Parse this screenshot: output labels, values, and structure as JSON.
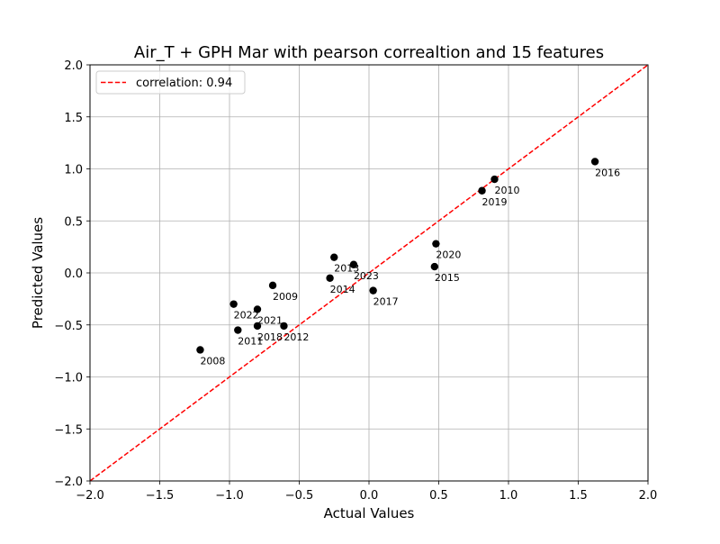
{
  "chart_data": {
    "type": "scatter",
    "title": "Air_T + GPH Mar with pearson correaltion and 15 features",
    "xlabel": "Actual Values",
    "ylabel": "Predicted Values",
    "xlim": [
      -2.0,
      2.0
    ],
    "ylim": [
      -2.0,
      2.0
    ],
    "xticks": [
      "−2.0",
      "−1.5",
      "−1.0",
      "−0.5",
      "0.0",
      "0.5",
      "1.0",
      "1.5",
      "2.0"
    ],
    "yticks": [
      "−2.0",
      "−1.5",
      "−1.0",
      "−0.5",
      "0.0",
      "0.5",
      "1.0",
      "1.5",
      "2.0"
    ],
    "grid": true,
    "legend": {
      "placement": "top-left",
      "entries": [
        {
          "label": "correlation: 0.94",
          "style": "dashed-line",
          "color": "#ff0000"
        }
      ]
    },
    "reference_line": {
      "from": [
        -2.0,
        -2.0
      ],
      "to": [
        2.0,
        2.0
      ],
      "color": "#ff0000",
      "style": "dashed"
    },
    "point_color": "#000000",
    "points": [
      {
        "label": "2008",
        "x": -1.21,
        "y": -0.74
      },
      {
        "label": "2009",
        "x": -0.69,
        "y": -0.12
      },
      {
        "label": "2010",
        "x": 0.9,
        "y": 0.9
      },
      {
        "label": "2011",
        "x": -0.94,
        "y": -0.55
      },
      {
        "label": "2012",
        "x": -0.61,
        "y": -0.51
      },
      {
        "label": "2013",
        "x": -0.25,
        "y": 0.15
      },
      {
        "label": "2014",
        "x": -0.28,
        "y": -0.05
      },
      {
        "label": "2015",
        "x": 0.47,
        "y": 0.06
      },
      {
        "label": "2016",
        "x": 1.62,
        "y": 1.07
      },
      {
        "label": "2017",
        "x": 0.03,
        "y": -0.17
      },
      {
        "label": "2018",
        "x": -0.8,
        "y": -0.51
      },
      {
        "label": "2019",
        "x": 0.81,
        "y": 0.79
      },
      {
        "label": "2020",
        "x": 0.48,
        "y": 0.28
      },
      {
        "label": "2021",
        "x": -0.8,
        "y": -0.35
      },
      {
        "label": "2022",
        "x": -0.97,
        "y": -0.3
      },
      {
        "label": "2023",
        "x": -0.11,
        "y": 0.08
      }
    ]
  }
}
